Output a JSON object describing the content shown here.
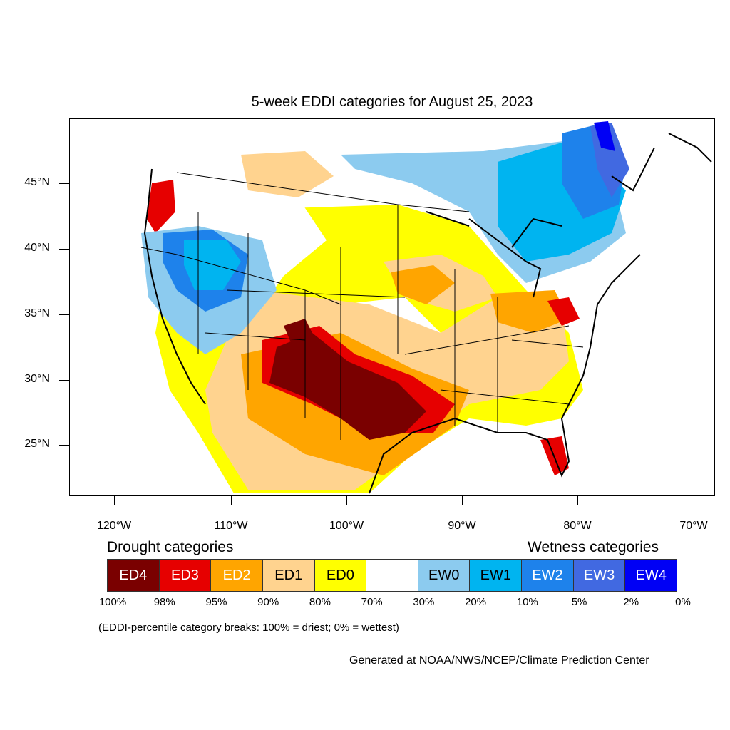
{
  "title": "5-week EDDI categories for August 25, 2023",
  "lat_ticks": [
    "45°N",
    "40°N",
    "35°N",
    "30°N",
    "25°N"
  ],
  "lon_ticks": [
    "120°W",
    "110°W",
    "100°W",
    "90°W",
    "80°W",
    "70°W"
  ],
  "legend": {
    "drought_heading": "Drought categories",
    "wetness_heading": "Wetness categories",
    "categories": [
      {
        "label": "ED4",
        "color": "#7a0000",
        "text_color": "#ffffff"
      },
      {
        "label": "ED3",
        "color": "#e60000",
        "text_color": "#ffffff"
      },
      {
        "label": "ED2",
        "color": "#ffa500",
        "text_color": "#ffffff"
      },
      {
        "label": "ED1",
        "color": "#ffd38f",
        "text_color": "#000000"
      },
      {
        "label": "ED0",
        "color": "#ffff00",
        "text_color": "#000000"
      },
      {
        "label": "",
        "color": "#ffffff",
        "text_color": "#000000"
      },
      {
        "label": "EW0",
        "color": "#8ccbef",
        "text_color": "#000000"
      },
      {
        "label": "EW1",
        "color": "#00b4f0",
        "text_color": "#000000"
      },
      {
        "label": "EW2",
        "color": "#1e82eb",
        "text_color": "#ffffff"
      },
      {
        "label": "EW3",
        "color": "#4169e1",
        "text_color": "#ffffff"
      },
      {
        "label": "EW4",
        "color": "#0000f5",
        "text_color": "#ffffff"
      }
    ],
    "percentiles": [
      "100%",
      "98%",
      "95%",
      "90%",
      "80%",
      "70%",
      "30%",
      "20%",
      "10%",
      "5%",
      "2%",
      "0%"
    ]
  },
  "note": "(EDDI-percentile category breaks: 100% = driest; 0% = wettest)",
  "credit": "Generated at NOAA/NWS/NCEP/Climate Prediction Center"
}
